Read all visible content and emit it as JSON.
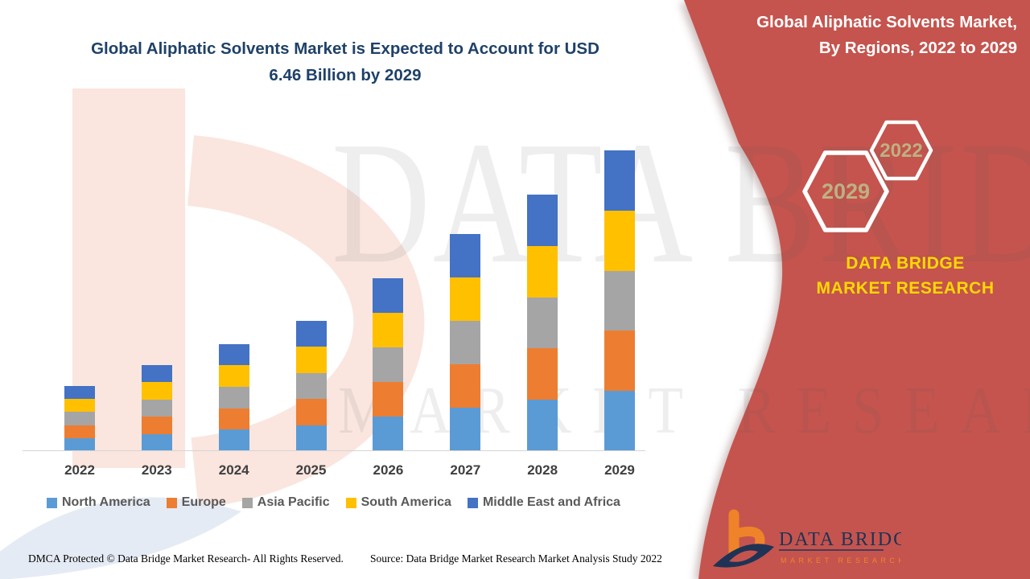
{
  "titles": {
    "main": "Global Aliphatic Solvents Market is Expected to Account for USD 6.46 Billion by 2029",
    "panel": "Global Aliphatic Solvents Market, By Regions, 2022 to 2029"
  },
  "panel": {
    "hexagon_years": [
      "2029",
      "2022"
    ],
    "brand": "DATA BRIDGE MARKET RESEARCH",
    "logo": {
      "title": "DATA BRIDGE",
      "subtitle": "MARKET RESEARCH"
    }
  },
  "watermarks": {
    "big_text": "DATA BRIDGE",
    "sub_text": "MARKET RESEARCH"
  },
  "footer": {
    "dmca": "DMCA Protected © Data Bridge Market Research- All Rights Reserved.",
    "source": "Source: Data Bridge Market Research Market Analysis Study 2022"
  },
  "colors": {
    "panel_red": "#C5544E",
    "title_navy": "#1F4168",
    "brand_yellow": "#FFD800",
    "hex_year": "#BDB183",
    "axis_label": "#3F3F3F",
    "legend_text": "#595959",
    "logo_navy": "#1E3355",
    "logo_orange": "#EF8329",
    "watermark_pink": "#FAE6DF",
    "watermark_blue": "#DEE6F3",
    "watermark_gray": "rgba(90,90,90,0.10)"
  },
  "chart_data": {
    "type": "bar",
    "stacked": true,
    "title": "Global Aliphatic Solvents Market, By Regions, 2022 to 2029",
    "unit": "USD Billion (estimated; chart shows no value axis)",
    "projected_2029": "USD 6.46 Billion",
    "categories": [
      "2022",
      "2023",
      "2024",
      "2025",
      "2026",
      "2027",
      "2028",
      "2029"
    ],
    "series": [
      {
        "key": "north-america",
        "name": "North America",
        "color": "#5B9BD5",
        "values": [
          0.28,
          0.37,
          0.46,
          0.56,
          0.74,
          0.93,
          1.1,
          1.29
        ]
      },
      {
        "key": "europe",
        "name": "Europe",
        "color": "#ED7D31",
        "values": [
          0.28,
          0.37,
          0.46,
          0.56,
          0.74,
          0.93,
          1.1,
          1.29
        ]
      },
      {
        "key": "asia-pacific",
        "name": "Asia Pacific",
        "color": "#A5A5A5",
        "values": [
          0.28,
          0.37,
          0.46,
          0.56,
          0.74,
          0.93,
          1.1,
          1.29
        ]
      },
      {
        "key": "south-america",
        "name": "South America",
        "color": "#FFC000",
        "values": [
          0.28,
          0.37,
          0.46,
          0.56,
          0.74,
          0.93,
          1.1,
          1.29
        ]
      },
      {
        "key": "middle-east-africa",
        "name": "Middle East and Africa",
        "color": "#4472C4",
        "values": [
          0.28,
          0.37,
          0.46,
          0.56,
          0.74,
          0.93,
          1.1,
          1.29
        ]
      }
    ],
    "totals_estimated": [
      1.4,
      1.85,
      2.3,
      2.8,
      3.7,
      4.65,
      5.5,
      6.46
    ],
    "xlabel": "",
    "ylabel": "",
    "legend_position": "bottom",
    "gridlines": false
  }
}
